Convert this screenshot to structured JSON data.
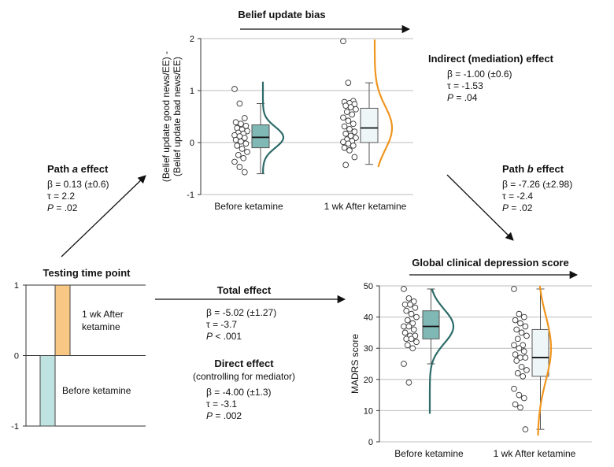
{
  "colors": {
    "teal": "#2d6b69",
    "teal_fill": "#7fb8b5",
    "teal_light": "#bfe3e1",
    "orange": "#f0951f",
    "orange_light": "#f7c783",
    "box_light": "#eef6f8"
  },
  "diagram": {
    "belief_title": "Belief update bias",
    "depression_title": "Global clinical depression score",
    "testing_title": "Testing time point",
    "path_a": {
      "title_pre": "Path ",
      "title_italic": "a",
      "title_post": " effect",
      "beta": "β = 0.13 (±0.6)",
      "tau": "τ = 2.2",
      "p_letter": "P",
      "p_value": " = .02"
    },
    "path_b": {
      "title_pre": "Path ",
      "title_italic": "b",
      "title_post": " effect",
      "beta": "β = -7.26 (±2.98)",
      "tau": "τ = -2.4",
      "p_letter": "P",
      "p_value": " = .02"
    },
    "indirect": {
      "title": "Indirect (mediation) effect",
      "beta": "β = -1.00 (±0.6)",
      "tau": "τ = -1.53",
      "p_letter": "P",
      "p_value": " = .04"
    },
    "total": {
      "title": "Total effect",
      "beta": "β = -5.02 (±1.27)",
      "tau": "τ = -3.7",
      "p_letter": "P",
      "p_value": " < .001"
    },
    "direct": {
      "title": "Direct effect",
      "subtitle": "(controlling for mediator)",
      "beta": "β = -4.00 (±1.3)",
      "tau": "τ = -3.1",
      "p_letter": "P",
      "p_value": " = .002"
    }
  },
  "chart_data": [
    {
      "type": "bar",
      "title": "Testing time point",
      "categories": [
        "1 wk After ketamine",
        "Before ketamine"
      ],
      "category_lines": [
        [
          "1 wk After",
          "ketamine"
        ],
        [
          "Before ketamine"
        ]
      ],
      "values": [
        1,
        -1
      ],
      "ylim": [
        -1,
        1
      ],
      "yticks": [
        1,
        0,
        -1
      ],
      "ytick_labels": [
        "1",
        "0",
        "-1"
      ]
    },
    {
      "type": "scatter",
      "title": "Belief update bias",
      "ylabel_lines": [
        "(Belief update good news/EE) -",
        "(Belief update bad news/EE)"
      ],
      "categories": [
        "Before ketamine",
        "1 wk After ketamine"
      ],
      "ylim": [
        -1,
        2
      ],
      "yticks": [
        -1,
        0,
        1,
        2
      ],
      "ytick_labels": [
        "-1",
        "0",
        "1",
        "2"
      ],
      "grid": true,
      "series": [
        {
          "values": [
            1.03,
            0.75,
            0.47,
            0.39,
            0.36,
            0.32,
            0.28,
            0.25,
            0.22,
            0.19,
            0.17,
            0.14,
            0.12,
            0.09,
            0.05,
            0.02,
            -0.02,
            -0.06,
            -0.12,
            -0.18,
            -0.24,
            -0.3,
            -0.37,
            -0.47,
            -0.57
          ],
          "box": {
            "min": -0.6,
            "q1": -0.1,
            "median": 0.1,
            "q3": 0.34,
            "max": 0.75
          },
          "density_peak": 0.1
        },
        {
          "values": [
            1.95,
            1.15,
            0.8,
            0.78,
            0.76,
            0.74,
            0.71,
            0.68,
            0.64,
            0.59,
            0.54,
            0.48,
            0.42,
            0.36,
            0.31,
            0.26,
            0.21,
            0.17,
            0.13,
            0.09,
            0.06,
            0.03,
            0.01,
            -0.02,
            -0.06,
            -0.1,
            -0.15,
            -0.28,
            -0.43
          ],
          "box": {
            "min": -0.42,
            "q1": 0.0,
            "median": 0.28,
            "q3": 0.66,
            "max": 1.15
          },
          "density_peak": 0.28
        }
      ]
    },
    {
      "type": "scatter",
      "title": "Global clinical depression score",
      "ylabel": "MADRS score",
      "categories": [
        "Before ketamine",
        "1 wk After ketamine"
      ],
      "ylim": [
        0,
        50
      ],
      "yticks": [
        0,
        10,
        20,
        30,
        40,
        50
      ],
      "ytick_labels": [
        "0",
        "10",
        "20",
        "30",
        "40",
        "50"
      ],
      "grid": true,
      "series": [
        {
          "values": [
            49,
            46,
            45,
            44,
            44,
            43,
            42,
            41,
            40,
            39,
            38,
            37,
            37,
            36,
            35,
            34,
            34,
            33,
            33,
            32,
            31,
            30,
            25,
            19
          ],
          "box": {
            "min": 25,
            "q1": 33,
            "median": 37,
            "q3": 42,
            "max": 49
          },
          "density_peak": 37
        },
        {
          "values": [
            49,
            41,
            40,
            39,
            38,
            37,
            36,
            35,
            34,
            33,
            31,
            31,
            30,
            29,
            28,
            27,
            27,
            26,
            24,
            23,
            22,
            21,
            17,
            15,
            14,
            12,
            11,
            4
          ],
          "box": {
            "min": 4,
            "q1": 21,
            "median": 27,
            "q3": 36,
            "max": 49
          },
          "density_peak": 30
        }
      ]
    }
  ]
}
